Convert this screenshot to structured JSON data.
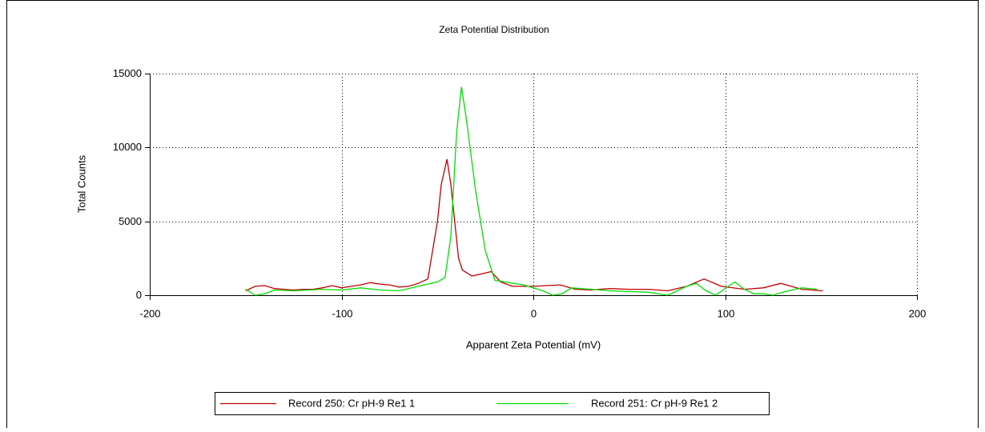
{
  "chart_data": {
    "type": "line",
    "title": "Zeta Potential Distribution",
    "xlabel": "Apparent Zeta Potential (mV)",
    "ylabel": "Total Counts",
    "xlim": [
      -200,
      200
    ],
    "xticks": [
      -200,
      -100,
      0,
      100,
      200
    ],
    "ylim": [
      0,
      15000
    ],
    "yticks": [
      0,
      5000,
      10000,
      15000
    ],
    "grid": true,
    "legend": "bottom",
    "series": [
      {
        "name": "Record 250: Cr pH-9 Re1 1",
        "color": "#c00000",
        "x": [
          -150,
          -145,
          -140,
          -135,
          -130,
          -125,
          -120,
          -115,
          -110,
          -105,
          -100,
          -95,
          -90,
          -85,
          -80,
          -75,
          -70,
          -65,
          -60,
          -55,
          -50,
          -48,
          -45,
          -43,
          -41,
          -39,
          -37,
          -32,
          -25,
          -22,
          -17,
          -11,
          0,
          14,
          22,
          30,
          40,
          50,
          60,
          70,
          80,
          89,
          98,
          110,
          120,
          129,
          140,
          151
        ],
        "values": [
          300,
          600,
          650,
          450,
          400,
          350,
          400,
          400,
          500,
          650,
          500,
          600,
          700,
          850,
          750,
          700,
          550,
          600,
          800,
          1100,
          5000,
          7500,
          9200,
          7500,
          5000,
          2500,
          1700,
          1300,
          1500,
          1600,
          900,
          600,
          600,
          700,
          400,
          350,
          450,
          400,
          400,
          300,
          600,
          1100,
          600,
          400,
          500,
          800,
          400,
          300
        ]
      },
      {
        "name": "Record 251: Cr pH-9 Re1 2",
        "color": "#00dd00",
        "x": [
          -150,
          -145,
          -140,
          -135,
          -125,
          -110,
          -100,
          -90,
          -80,
          -70,
          -60,
          -50,
          -46,
          -43,
          -40,
          -37.5,
          -35,
          -30,
          -25,
          -20,
          -15,
          -5,
          0,
          5,
          10,
          15,
          20,
          40,
          60,
          70,
          80,
          85,
          90,
          95,
          105,
          110,
          115,
          120,
          125,
          130,
          140,
          148
        ],
        "values": [
          400,
          0,
          100,
          350,
          300,
          400,
          350,
          500,
          350,
          300,
          600,
          900,
          1200,
          4000,
          11000,
          14100,
          12000,
          7000,
          3000,
          1000,
          900,
          700,
          500,
          300,
          0,
          100,
          500,
          300,
          200,
          0,
          600,
          800,
          300,
          0,
          900,
          400,
          100,
          100,
          0,
          200,
          500,
          400
        ]
      }
    ]
  }
}
